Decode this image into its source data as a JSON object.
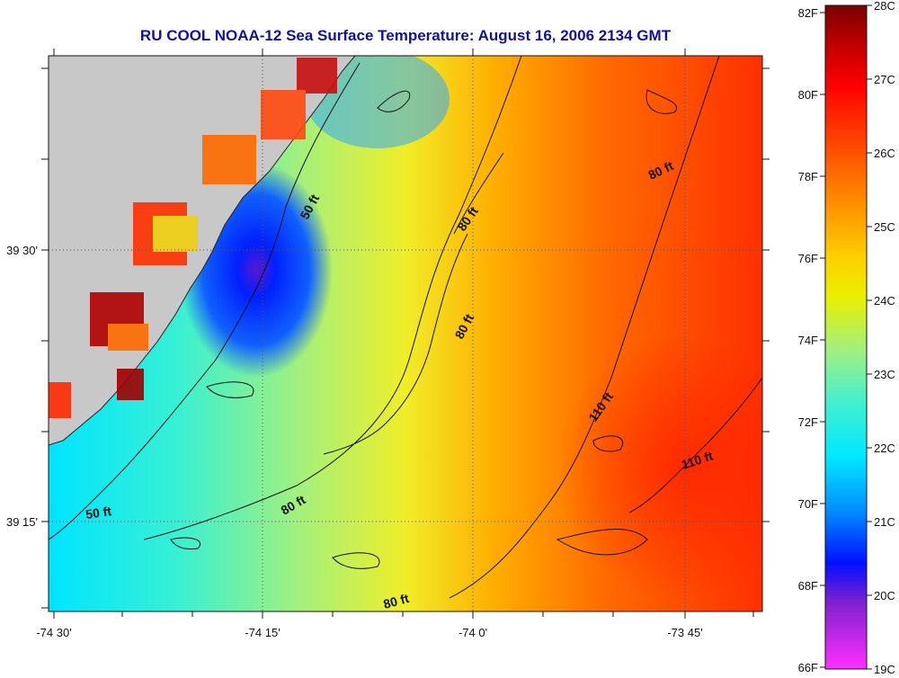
{
  "title": "RU COOL  NOAA-12  Sea Surface Temperature:  August 16, 2006 2134 GMT",
  "map": {
    "lon_labels": [
      "-74 30'",
      "-74 15'",
      "-74 0'",
      "-73 45'"
    ],
    "lat_labels": [
      "39 30'",
      "39 15'"
    ],
    "contour_labels": [
      "50 ft",
      "80 ft",
      "80 ft",
      "80 ft",
      "110 ft",
      "110 ft",
      "50 ft",
      "80 ft",
      "80 ft"
    ]
  },
  "colorbar": {
    "fahrenheit_labels": [
      "82F",
      "80F",
      "78F",
      "76F",
      "74F",
      "72F",
      "70F",
      "68F",
      "66F"
    ],
    "celsius_labels": [
      "28C",
      "27C",
      "26C",
      "25C",
      "24C",
      "23C",
      "22C",
      "21C",
      "20C",
      "19C"
    ]
  },
  "colors": {
    "title": "#1010a8",
    "land": "#c8c8c8",
    "warm": "#ff2a00",
    "cool": "#00e0ff"
  }
}
